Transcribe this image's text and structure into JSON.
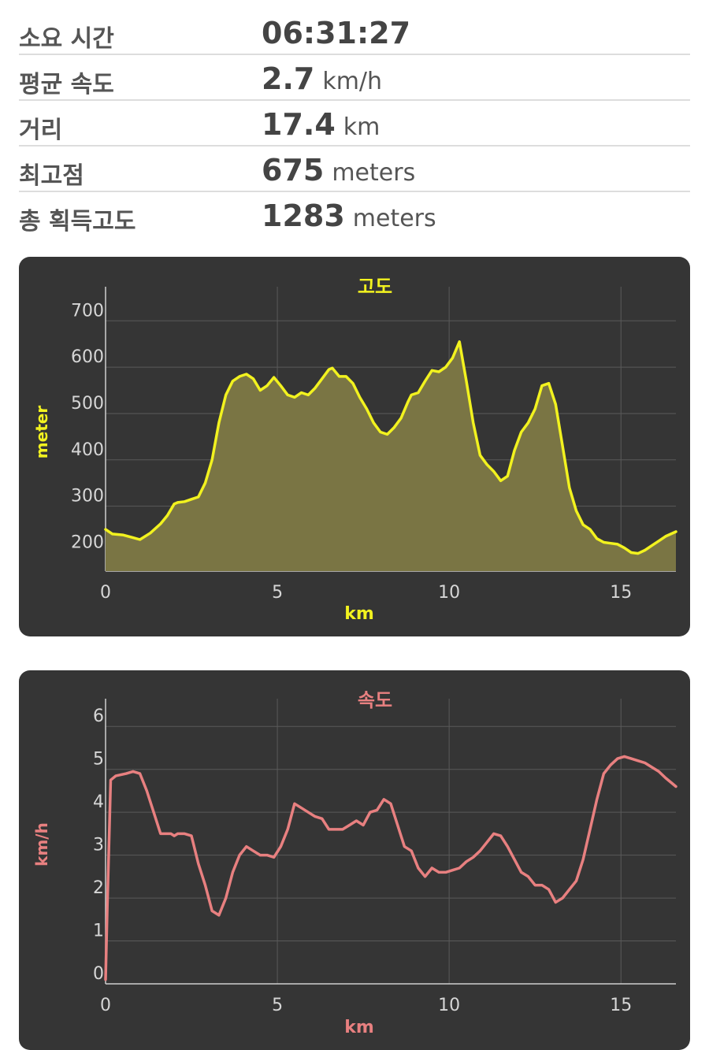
{
  "stats": [
    {
      "label": "소요 시간",
      "value": "06:31:27",
      "unit": ""
    },
    {
      "label": "평균 속도",
      "value": "2.7",
      "unit": "km/h"
    },
    {
      "label": "거리",
      "value": "17.4",
      "unit": "km"
    },
    {
      "label": "최고점",
      "value": "675",
      "unit": "meters"
    },
    {
      "label": "총 획득고도",
      "value": "1283",
      "unit": "meters"
    }
  ],
  "colors": {
    "altitude_line": "#f2f21f",
    "altitude_fill": "#7a7544",
    "speed_line": "#e88080",
    "panel_bg": "#353535",
    "grid": "#5a5a5a",
    "tick_text": "#d6d6d6"
  },
  "chart_data": [
    {
      "type": "area",
      "title": "고도",
      "xlabel": "km",
      "ylabel": "meter",
      "xlim": [
        0,
        16.6
      ],
      "ylim": [
        160,
        760
      ],
      "xticks": [
        0,
        5,
        10,
        15
      ],
      "yticks": [
        200,
        300,
        400,
        500,
        600,
        700
      ],
      "grid": true,
      "series": [
        {
          "x": [
            0,
            0.2,
            0.5,
            0.8,
            1.0,
            1.3,
            1.6,
            1.8,
            2.0,
            2.1,
            2.3,
            2.5,
            2.7,
            2.9,
            3.1,
            3.3,
            3.5,
            3.7,
            3.9,
            4.1,
            4.3,
            4.5,
            4.7,
            4.9,
            5.1,
            5.3,
            5.5,
            5.7,
            5.9,
            6.1,
            6.3,
            6.5,
            6.6,
            6.8,
            7.0,
            7.2,
            7.4,
            7.6,
            7.8,
            8.0,
            8.2,
            8.4,
            8.6,
            8.8,
            8.9,
            9.1,
            9.3,
            9.5,
            9.7,
            9.9,
            10.1,
            10.3,
            10.5,
            10.7,
            10.9,
            11.1,
            11.3,
            11.5,
            11.7,
            11.9,
            12.1,
            12.3,
            12.5,
            12.7,
            12.9,
            13.1,
            13.3,
            13.5,
            13.7,
            13.9,
            14.1,
            14.3,
            14.5,
            14.7,
            14.9,
            15.1,
            15.3,
            15.5,
            15.7,
            15.9,
            16.1,
            16.3,
            16.6
          ],
          "y": [
            250,
            240,
            238,
            232,
            228,
            242,
            262,
            280,
            305,
            308,
            310,
            315,
            320,
            350,
            400,
            480,
            540,
            570,
            580,
            585,
            575,
            550,
            560,
            578,
            560,
            540,
            535,
            545,
            540,
            555,
            575,
            595,
            598,
            580,
            580,
            565,
            535,
            510,
            480,
            460,
            455,
            470,
            490,
            525,
            540,
            545,
            570,
            593,
            590,
            600,
            620,
            655,
            570,
            480,
            410,
            390,
            375,
            355,
            365,
            420,
            460,
            480,
            510,
            560,
            565,
            520,
            430,
            340,
            290,
            260,
            250,
            230,
            222,
            220,
            218,
            210,
            200,
            198,
            205,
            215,
            225,
            235,
            245
          ]
        }
      ]
    },
    {
      "type": "line",
      "title": "속도",
      "xlabel": "km",
      "ylabel": "km/h",
      "xlim": [
        0,
        16.6
      ],
      "ylim": [
        0,
        6.5
      ],
      "xticks": [
        0,
        5,
        10,
        15
      ],
      "yticks": [
        0,
        1,
        2,
        3,
        4,
        5,
        6
      ],
      "grid": true,
      "series": [
        {
          "x": [
            0,
            0.05,
            0.15,
            0.3,
            0.6,
            0.8,
            1.0,
            1.2,
            1.4,
            1.6,
            1.7,
            1.9,
            2.0,
            2.1,
            2.3,
            2.5,
            2.7,
            2.9,
            3.1,
            3.3,
            3.5,
            3.7,
            3.9,
            4.1,
            4.3,
            4.5,
            4.7,
            4.9,
            5.1,
            5.3,
            5.5,
            5.7,
            5.9,
            6.1,
            6.3,
            6.5,
            6.7,
            6.9,
            7.1,
            7.3,
            7.5,
            7.7,
            7.9,
            8.1,
            8.3,
            8.5,
            8.7,
            8.9,
            9.1,
            9.3,
            9.5,
            9.7,
            9.9,
            10.1,
            10.3,
            10.5,
            10.7,
            10.9,
            11.1,
            11.3,
            11.5,
            11.7,
            11.9,
            12.1,
            12.3,
            12.5,
            12.7,
            12.9,
            13.1,
            13.3,
            13.5,
            13.7,
            13.9,
            14.1,
            14.3,
            14.5,
            14.7,
            14.9,
            15.1,
            15.3,
            15.5,
            15.7,
            15.9,
            16.1,
            16.3,
            16.6
          ],
          "y": [
            0.1,
            1.8,
            4.75,
            4.85,
            4.9,
            4.95,
            4.9,
            4.5,
            4.0,
            3.5,
            3.5,
            3.5,
            3.45,
            3.5,
            3.5,
            3.45,
            2.8,
            2.3,
            1.7,
            1.6,
            2.0,
            2.6,
            3.0,
            3.2,
            3.1,
            3.0,
            3.0,
            2.95,
            3.2,
            3.6,
            4.2,
            4.1,
            4.0,
            3.9,
            3.85,
            3.6,
            3.6,
            3.6,
            3.7,
            3.8,
            3.7,
            4.0,
            4.05,
            4.3,
            4.2,
            3.7,
            3.2,
            3.1,
            2.7,
            2.5,
            2.7,
            2.6,
            2.6,
            2.65,
            2.7,
            2.85,
            2.95,
            3.1,
            3.3,
            3.5,
            3.45,
            3.2,
            2.9,
            2.6,
            2.5,
            2.3,
            2.3,
            2.2,
            1.9,
            2.0,
            2.2,
            2.4,
            2.9,
            3.6,
            4.3,
            4.9,
            5.1,
            5.25,
            5.3,
            5.25,
            5.2,
            5.15,
            5.05,
            4.95,
            4.8,
            4.6
          ]
        }
      ]
    }
  ]
}
